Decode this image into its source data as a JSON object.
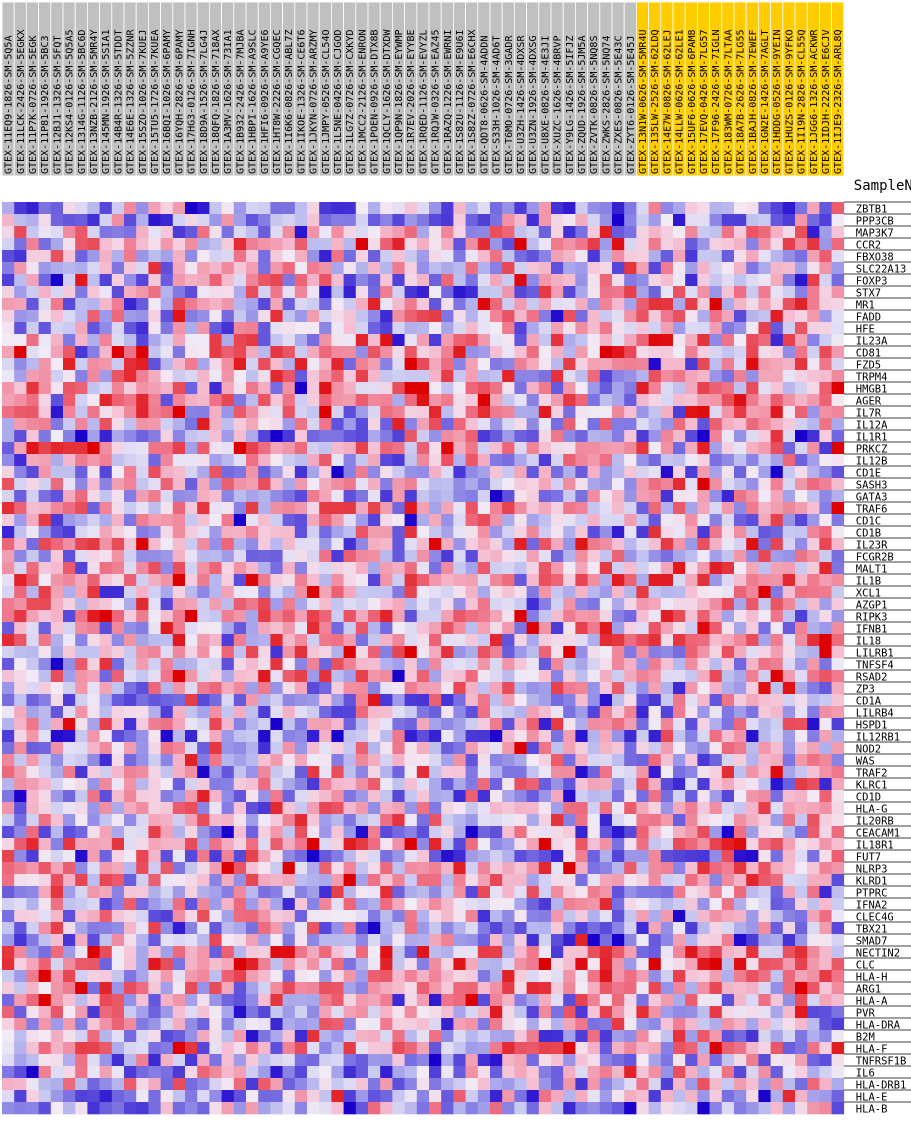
{
  "chart_data": {
    "type": "heatmap",
    "column_axis_title": "SampleName",
    "columns": [
      {
        "name": "GTEX-11EQ9-1826-SM-5Q5A",
        "group": "gray"
      },
      {
        "name": "GTEX-11LCK-2426-SM-5EGKX",
        "group": "gray"
      },
      {
        "name": "GTEX-11P7K-0726-SM-5EGK",
        "group": "gray"
      },
      {
        "name": "GTEX-11P81-1926-SM-5BC3",
        "group": "gray"
      },
      {
        "name": "GTEX-12BJ1-1326-SM-5FQT",
        "group": "gray"
      },
      {
        "name": "GTEX-12KS4-0126-SM-5Q5A5",
        "group": "gray"
      },
      {
        "name": "GTEX-1314G-1126-SM-5BC6D",
        "group": "gray"
      },
      {
        "name": "GTEX-13NZB-2126-SM-5MR4Y",
        "group": "gray"
      },
      {
        "name": "GTEX-145MN-1926-SM-5SIA1",
        "group": "gray"
      },
      {
        "name": "GTEX-14B4R-1326-SM-5TDDT",
        "group": "gray"
      },
      {
        "name": "GTEX-14E6E-1326-SM-5ZZNR",
        "group": "gray"
      },
      {
        "name": "GTEX-15SZO-1026-SM-7KUEJ",
        "group": "gray"
      },
      {
        "name": "GTEX-15TU5-1726-SM-7KUEA",
        "group": "gray"
      },
      {
        "name": "GTEX-16BQI-1026-SM-6PAMY",
        "group": "gray"
      },
      {
        "name": "GTEX-16YQH-2826-SM-6PAMY",
        "group": "gray"
      },
      {
        "name": "GTEX-17HG3-0126-SM-7IGNH",
        "group": "gray"
      },
      {
        "name": "GTEX-18D9A-1526-SM-7LG4J",
        "group": "gray"
      },
      {
        "name": "GTEX-18QFQ-1826-SM-718AX",
        "group": "gray"
      },
      {
        "name": "GTEX-1A3MV-1626-SM-73IA1",
        "group": "gray"
      },
      {
        "name": "GTEX-1B932-2426-SM-7MJBA",
        "group": "gray"
      },
      {
        "name": "GTEX-1HBPI-1626-SM-A9SLC",
        "group": "gray"
      },
      {
        "name": "GTEX-1HFI6-0926-SM-A9YE6",
        "group": "gray"
      },
      {
        "name": "GTEX-1HT8W-2226-SM-CGQEC",
        "group": "gray"
      },
      {
        "name": "GTEX-1I6K6-0826-SM-ABL7Z",
        "group": "gray"
      },
      {
        "name": "GTEX-1IKOE-1326-SM-CE6T6",
        "group": "gray"
      },
      {
        "name": "GTEX-1JKYN-0726-SM-ARZMY",
        "group": "gray"
      },
      {
        "name": "GTEX-1JMPY-0526-SM-CL54O",
        "group": "gray"
      },
      {
        "name": "GTEX-1L5NE-0426-SM-CJGOD",
        "group": "gray"
      },
      {
        "name": "GTEX-1LG7Z-0726-SM-CXKYD",
        "group": "gray"
      },
      {
        "name": "GTEX-1MCC2-2126-SM-ENRON",
        "group": "gray"
      },
      {
        "name": "GTEX-1POEN-0926-SM-DTX8B",
        "group": "gray"
      },
      {
        "name": "GTEX-1QCLY-1626-SM-DTXDW",
        "group": "gray"
      },
      {
        "name": "GTEX-1QP9N-1826-SM-EYWMP",
        "group": "gray"
      },
      {
        "name": "GTEX-1R7EV-2026-SM-EYYBE",
        "group": "gray"
      },
      {
        "name": "GTEX-1RQED-1126-SM-EVYZL",
        "group": "gray"
      },
      {
        "name": "GTEX-1RQJW-0326-SM-EAZ45",
        "group": "gray"
      },
      {
        "name": "GTEX-1RAZQ-1226-SM-EWRNI",
        "group": "gray"
      },
      {
        "name": "GTEX-1S82U-1126-SM-E9U6I",
        "group": "gray"
      },
      {
        "name": "GTEX-1S82Z-0726-SM-E6CHX",
        "group": "gray"
      },
      {
        "name": "GTEX-QDT8-0626-SM-4ADDN",
        "group": "gray"
      },
      {
        "name": "GTEX-S33H-1026-SM-4AD6T",
        "group": "gray"
      },
      {
        "name": "GTEX-T6MO-0726-SM-3GADR",
        "group": "gray"
      },
      {
        "name": "GTEX-U3ZH-1426-SM-4DXSR",
        "group": "gray"
      },
      {
        "name": "GTEX-U3ZN-1926-SM-4DXSG",
        "group": "gray"
      },
      {
        "name": "GTEX-U8XE-0826-SM-4E3JI",
        "group": "gray"
      },
      {
        "name": "GTEX-XUZC-1626-SM-4BRVP",
        "group": "gray"
      },
      {
        "name": "GTEX-Y9LG-1426-SM-5IFJZ",
        "group": "gray"
      },
      {
        "name": "GTEX-ZQUD-1926-SM-5JM5A",
        "group": "gray"
      },
      {
        "name": "GTEX-ZVTK-0826-SM-5NQ8S",
        "group": "gray"
      },
      {
        "name": "GTEX-ZWKS-2826-SM-5NQ74",
        "group": "gray"
      },
      {
        "name": "GTEX-ZXES-0826-SM-5E43C",
        "group": "gray"
      },
      {
        "name": "GTEX-ZYT6-0126-SM-5E45J",
        "group": "gray"
      },
      {
        "name": "GTEX-13N1W-0626-SM-5MR4U",
        "group": "yellow"
      },
      {
        "name": "GTEX-135LW-2526-SM-62LDQ",
        "group": "yellow"
      },
      {
        "name": "GTEX-14E7W-0826-SM-62LEJ",
        "group": "yellow"
      },
      {
        "name": "GTEX-14LLW-0626-SM-62LE1",
        "group": "yellow"
      },
      {
        "name": "GTEX-15UF6-0626-SM-6PAM8",
        "group": "yellow"
      },
      {
        "name": "GTEX-17EVQ-0426-SM-7LG57",
        "group": "yellow"
      },
      {
        "name": "GTEX-17F96-2426-SM-7IGLN",
        "group": "yellow"
      },
      {
        "name": "GTEX-183WM-0726-SM-7LTAA",
        "group": "yellow"
      },
      {
        "name": "GTEX-18A7B-2626-SM-7LG55",
        "group": "yellow"
      },
      {
        "name": "GTEX-1BAJH-0826-SM-7EWEF",
        "group": "yellow"
      },
      {
        "name": "GTEX-1GN2E-1426-SM-7AGLT",
        "group": "yellow"
      },
      {
        "name": "GTEX-1HDDG-0526-SM-9YEIN",
        "group": "yellow"
      },
      {
        "name": "GTEX-1HUZS-0126-SM-9YFKO",
        "group": "yellow"
      },
      {
        "name": "GTEX-1I19N-2826-SM-CL55Q",
        "group": "yellow"
      },
      {
        "name": "GTEX-1JGG6-1326-SM-ACKWR",
        "group": "yellow"
      },
      {
        "name": "GTEX-1IDJH-2226-SM-E6CJV",
        "group": "yellow"
      },
      {
        "name": "GTEX-1IJE9-2326-SM-ARL8Q",
        "group": "yellow"
      }
    ],
    "rows": [
      "ZBTB1",
      "PPP3CB",
      "MAP3K7",
      "CCR2",
      "FBXO38",
      "SLC22A13",
      "FOXP3",
      "STX7",
      "MR1",
      "FADD",
      "HFE",
      "IL23A",
      "CD81",
      "FZD5",
      "TRPM4",
      "HMGB1",
      "AGER",
      "IL7R",
      "IL12A",
      "IL1R1",
      "PRKCZ",
      "IL12B",
      "CD1E",
      "SASH3",
      "GATA3",
      "TRAF6",
      "CD1C",
      "CD1B",
      "IL23R",
      "FCGR2B",
      "MALT1",
      "IL1B",
      "XCL1",
      "AZGP1",
      "RIPK3",
      "IFNB1",
      "IL18",
      "LILRB1",
      "TNFSF4",
      "RSAD2",
      "ZP3",
      "CD1A",
      "LILRB4",
      "HSPD1",
      "IL12RB1",
      "NOD2",
      "WAS",
      "TRAF2",
      "KLRC1",
      "CD1D",
      "HLA-G",
      "IL20RB",
      "CEACAM1",
      "IL18R1",
      "FUT7",
      "NLRP3",
      "KLRD1",
      "PTPRC",
      "IFNA2",
      "CLEC4G",
      "TBX21",
      "SMAD7",
      "NECTIN2",
      "CLC",
      "HLA-H",
      "ARG1",
      "HLA-A",
      "PVR",
      "HLA-DRA",
      "B2M",
      "HLA-F",
      "TNFRSF1B",
      "IL6",
      "HLA-DRB1",
      "HLA-E",
      "HLA-B"
    ],
    "colors": {
      "low": "#1a00cc",
      "mid_low": "#a8a8ef",
      "mid": "#f2ebf6",
      "mid_high": "#f0a0b8",
      "high": "#dd0000",
      "header_gray": "#c0c0c0",
      "header_yellow": "#ffcc00"
    },
    "values_encoding": "relative expression, -3 (blue) to +3 (red)"
  }
}
